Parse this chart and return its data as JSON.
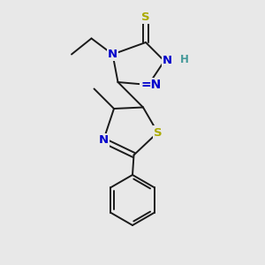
{
  "bg_color": "#e8e8e8",
  "bond_color": "#1a1a1a",
  "bond_width": 1.4,
  "atom_colors": {
    "S": "#aaaa00",
    "N": "#0000cc",
    "H": "#449999",
    "C": "#1a1a1a"
  },
  "font_size_atom": 9.5,
  "font_size_H": 8.5
}
